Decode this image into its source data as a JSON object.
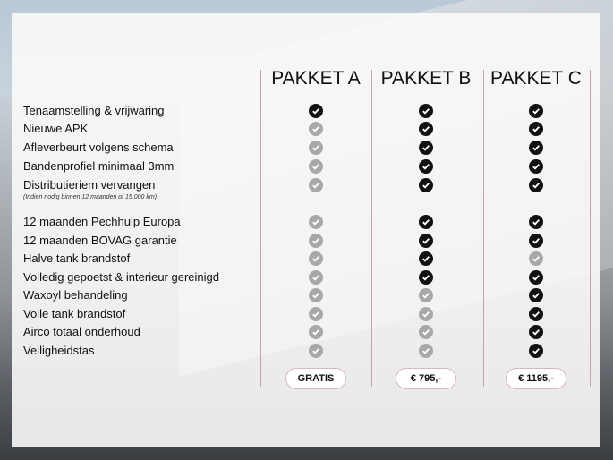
{
  "colors": {
    "on": "#111111",
    "off": "#a8a8a8",
    "divider": "#c9a3a3"
  },
  "packages": [
    {
      "name": "PAKKET A",
      "price": "GRATIS"
    },
    {
      "name": "PAKKET B",
      "price": "€ 795,-"
    },
    {
      "name": "PAKKET C",
      "price": "€ 1195,-"
    }
  ],
  "note": "(Indien nodig binnen 12 maanden of 15.000 km)",
  "features": [
    {
      "label": "Tenaamstelling & vrijwaring",
      "checks": [
        true,
        true,
        true
      ]
    },
    {
      "label": "Nieuwe APK",
      "checks": [
        false,
        true,
        true
      ]
    },
    {
      "label": "Afleverbeurt volgens schema",
      "checks": [
        false,
        true,
        true
      ]
    },
    {
      "label": "Bandenprofiel minimaal 3mm",
      "checks": [
        false,
        true,
        true
      ]
    },
    {
      "label": "Distributieriem vervangen",
      "checks": [
        false,
        true,
        true
      ]
    },
    {
      "label": "12 maanden Pechhulp Europa",
      "checks": [
        false,
        true,
        true
      ]
    },
    {
      "label": "12 maanden BOVAG garantie",
      "checks": [
        false,
        true,
        true
      ]
    },
    {
      "label": "Halve tank brandstof",
      "checks": [
        false,
        true,
        false
      ]
    },
    {
      "label": "Volledig gepoetst & interieur gereinigd",
      "checks": [
        false,
        true,
        true
      ]
    },
    {
      "label": "Waxoyl behandeling",
      "checks": [
        false,
        false,
        true
      ]
    },
    {
      "label": "Volle tank brandstof",
      "checks": [
        false,
        false,
        true
      ]
    },
    {
      "label": "Airco totaal onderhoud",
      "checks": [
        false,
        false,
        true
      ]
    },
    {
      "label": "Veiligheidstas",
      "checks": [
        false,
        false,
        true
      ]
    }
  ]
}
